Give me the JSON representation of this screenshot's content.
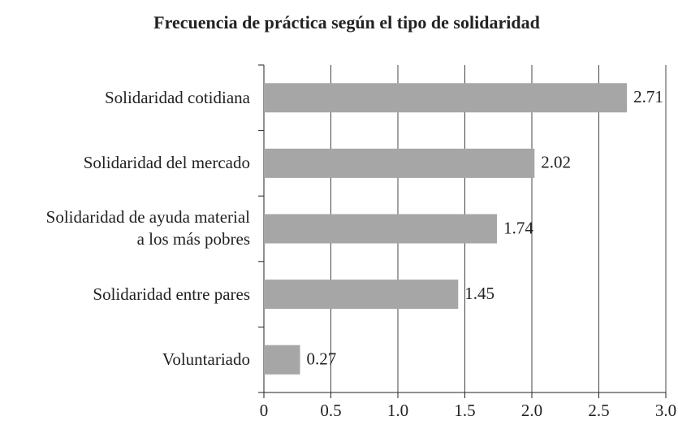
{
  "chart_data": {
    "type": "bar",
    "orientation": "horizontal",
    "title": "Frecuencia de práctica según el tipo de solidaridad",
    "categories": [
      "Solidaridad cotidiana",
      "Solidaridad del mercado",
      "Solidaridad de ayuda material\na los más pobres",
      "Solidaridad entre pares",
      "Voluntariado"
    ],
    "values": [
      2.71,
      2.02,
      1.74,
      1.45,
      0.27
    ],
    "color": "#a6a6a6",
    "xlim": [
      0,
      3
    ],
    "xticks": [
      0,
      0.5,
      {
        "value": 1,
        "label": "1.0"
      },
      1.5,
      {
        "value": 2,
        "label": "2.0"
      },
      2.5,
      {
        "value": 3,
        "label": "3.0"
      }
    ],
    "grid": true
  }
}
